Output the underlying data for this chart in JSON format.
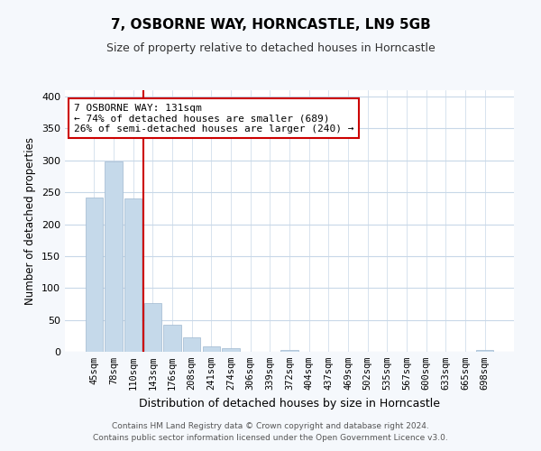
{
  "title": "7, OSBORNE WAY, HORNCASTLE, LN9 5GB",
  "subtitle": "Size of property relative to detached houses in Horncastle",
  "xlabel": "Distribution of detached houses by size in Horncastle",
  "ylabel": "Number of detached properties",
  "bar_labels": [
    "45sqm",
    "78sqm",
    "110sqm",
    "143sqm",
    "176sqm",
    "208sqm",
    "241sqm",
    "274sqm",
    "306sqm",
    "339sqm",
    "372sqm",
    "404sqm",
    "437sqm",
    "469sqm",
    "502sqm",
    "535sqm",
    "567sqm",
    "600sqm",
    "633sqm",
    "665sqm",
    "698sqm"
  ],
  "bar_values": [
    242,
    298,
    240,
    76,
    43,
    22,
    9,
    5,
    0,
    0,
    3,
    0,
    0,
    0,
    0,
    0,
    0,
    0,
    0,
    0,
    3
  ],
  "bar_color": "#c5d9ea",
  "bar_edge_color": "#a0b8d0",
  "vline_color": "#cc0000",
  "vline_x": 2.5,
  "annotation_title": "7 OSBORNE WAY: 131sqm",
  "annotation_line1": "← 74% of detached houses are smaller (689)",
  "annotation_line2": "26% of semi-detached houses are larger (240) →",
  "annotation_box_facecolor": "#ffffff",
  "annotation_box_edgecolor": "#cc0000",
  "ylim": [
    0,
    410
  ],
  "yticks": [
    0,
    50,
    100,
    150,
    200,
    250,
    300,
    350,
    400
  ],
  "footer1": "Contains HM Land Registry data © Crown copyright and database right 2024.",
  "footer2": "Contains public sector information licensed under the Open Government Licence v3.0.",
  "bg_color": "#f5f8fc",
  "plot_bg_color": "#ffffff",
  "grid_color": "#c8d8e8",
  "title_fontsize": 11,
  "subtitle_fontsize": 9,
  "ylabel_fontsize": 8.5,
  "xlabel_fontsize": 9,
  "tick_fontsize": 7.5,
  "annotation_fontsize": 8,
  "footer_fontsize": 6.5
}
